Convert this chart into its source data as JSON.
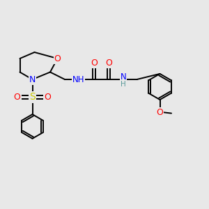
{
  "bg_color": "#e8e8e8",
  "atom_colors": {
    "C": "#000000",
    "N": "#0000ff",
    "O": "#ff0000",
    "S": "#cccc00",
    "H": "#5a9a9a"
  },
  "bond_color": "#000000",
  "lw": 1.4
}
